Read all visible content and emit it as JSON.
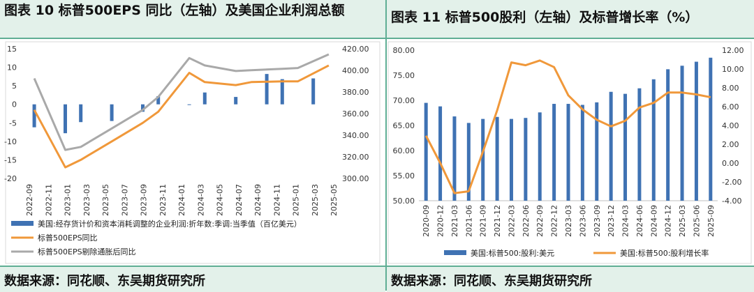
{
  "left_panel": {
    "title": "图表 10 标普500EPS 同比（左轴）及美国企业利润总额",
    "source": "数据来源：同花顺、东吴期货研究所"
  },
  "right_panel": {
    "title": "图表 11 标普500股利（左轴）及标普增长率（%）",
    "source": "数据来源：同花顺、东吴期货研究所"
  },
  "colors": {
    "bar": "#3f72b3",
    "orange": "#f0983a",
    "gray": "#a9a9a9",
    "band": "#e3f1ea",
    "border": "#5fae94"
  },
  "chart_data": [
    {
      "type": "bar",
      "title": "",
      "categories": [
        "2022-09",
        "2022-11",
        "2023-01",
        "2023-03",
        "2023-05",
        "2023-07",
        "2023-09",
        "2023-11",
        "2024-01",
        "2024-03",
        "2024-05",
        "2024-07",
        "2024-09",
        "2024-11",
        "2025-01",
        "2025-03",
        "2025-05"
      ],
      "left_axis": {
        "ylim": [
          -20,
          15
        ],
        "ticks": [
          "-20",
          "-15",
          "-10",
          "-5",
          "0",
          "5",
          "10",
          "15"
        ],
        "tick_values": [
          -20,
          -15,
          -10,
          -5,
          0,
          5,
          10,
          15
        ]
      },
      "right_axis": {
        "ylim": [
          300,
          420
        ],
        "ticks": [
          "300.00",
          "320.00",
          "340.00",
          "360.00",
          "380.00",
          "400.00",
          "420.00"
        ],
        "tick_values": [
          300,
          320,
          340,
          360,
          380,
          400,
          420
        ]
      },
      "series": [
        {
          "name": "美国:经存货计价和资本消耗调整的企业利润:折年数:季调:当季值（百亿美元）",
          "kind": "bar",
          "axis": "left",
          "points": [
            [
              0,
              -6.2
            ],
            [
              2,
              -7.8
            ],
            [
              3,
              -4.8
            ],
            [
              5,
              -4.5
            ],
            [
              7,
              -2.0
            ],
            [
              8,
              2.2
            ],
            [
              10,
              0.0
            ],
            [
              11,
              3.2
            ],
            [
              13,
              2.0
            ],
            [
              15,
              8.2
            ],
            [
              16,
              6.8
            ],
            [
              18,
              7.0
            ]
          ]
        },
        {
          "name": "标普500EPS同比",
          "kind": "line",
          "axis": "left",
          "points": [
            [
              0,
              -1.5
            ],
            [
              2,
              -17.0
            ],
            [
              3,
              -15.0
            ],
            [
              5,
              -10.0
            ],
            [
              7,
              -5.0
            ],
            [
              8,
              -2.0
            ],
            [
              10,
              8.5
            ],
            [
              11,
              6.0
            ],
            [
              13,
              5.2
            ],
            [
              14,
              6.0
            ],
            [
              16,
              6.2
            ],
            [
              17,
              6.2
            ],
            [
              19,
              10.5
            ]
          ]
        },
        {
          "name": "标普500EPS剔除通胀后同比",
          "kind": "line",
          "axis": "left",
          "points": [
            [
              0,
              7.0
            ],
            [
              2,
              -12.3
            ],
            [
              3,
              -11.5
            ],
            [
              5,
              -6.5
            ],
            [
              7,
              -1.5
            ],
            [
              8,
              2.0
            ],
            [
              10,
              12.5
            ],
            [
              11,
              10.5
            ],
            [
              13,
              9.0
            ],
            [
              14,
              9.2
            ],
            [
              16,
              9.6
            ],
            [
              17,
              9.8
            ],
            [
              19,
              13.5
            ]
          ]
        }
      ]
    },
    {
      "type": "bar",
      "title": "",
      "categories": [
        "2020-09",
        "2020-12",
        "2021-03",
        "2021-06",
        "2021-09",
        "2021-12",
        "2022-03",
        "2022-06",
        "2022-09",
        "2022-12",
        "2023-03",
        "2023-06",
        "2023-09",
        "2023-12",
        "2024-03",
        "2024-06",
        "2024-09",
        "2024-12",
        "2025-03",
        "2025-06",
        "2025-09"
      ],
      "left_axis": {
        "ylim": [
          50,
          80
        ],
        "ticks": [
          "50.00",
          "55.00",
          "60.00",
          "65.00",
          "70.00",
          "75.00",
          "80.00"
        ],
        "tick_values": [
          50,
          55,
          60,
          65,
          70,
          75,
          80
        ]
      },
      "right_axis": {
        "ylim": [
          -4,
          12
        ],
        "ticks": [
          "-4.00",
          "-2.00",
          "0.00",
          "2.00",
          "4.00",
          "6.00",
          "8.00",
          "10.00",
          "12.00"
        ],
        "tick_values": [
          -4,
          -2,
          0,
          2,
          4,
          6,
          8,
          10,
          12
        ]
      },
      "series": [
        {
          "name": "美国:标普500:股利:美元",
          "kind": "bar",
          "axis": "left",
          "values": [
            69.5,
            68.8,
            66.8,
            65.5,
            66.3,
            66.7,
            66.3,
            66.5,
            67.6,
            69.3,
            69.3,
            69.1,
            69.6,
            71.7,
            71.3,
            72.4,
            74.2,
            76.2,
            76.9,
            77.7,
            78.5
          ]
        },
        {
          "name": "美国:标普500:股利增长率",
          "kind": "line",
          "axis": "right",
          "values": [
            2.9,
            0.0,
            -3.2,
            -3.0,
            1.2,
            5.6,
            10.7,
            10.4,
            10.9,
            10.2,
            7.2,
            5.7,
            4.6,
            3.9,
            4.5,
            5.9,
            6.4,
            7.5,
            7.5,
            7.3,
            7.0
          ]
        }
      ]
    }
  ]
}
